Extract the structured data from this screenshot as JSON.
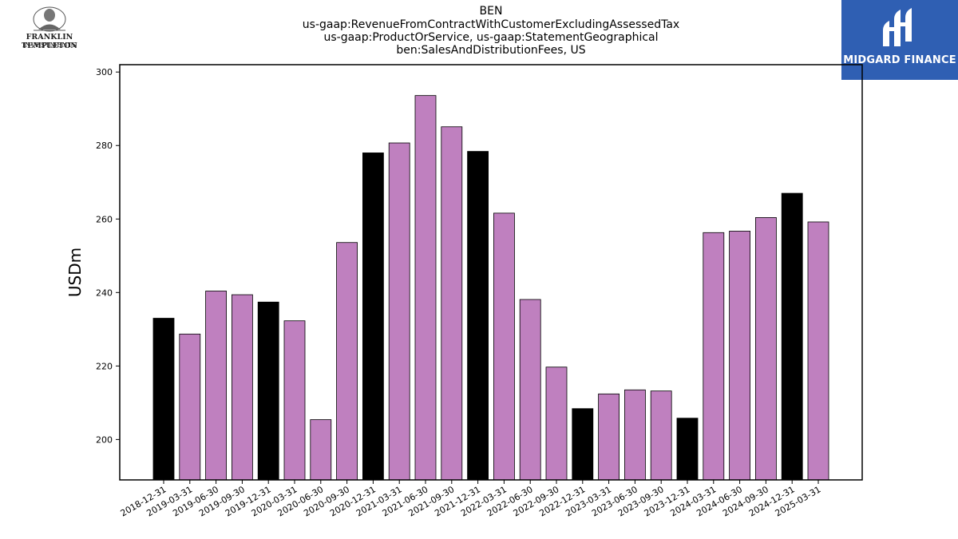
{
  "title_lines": [
    "BEN",
    "us-gaap:RevenueFromContractWithCustomerExcludingAssessedTax",
    "us-gaap:ProductOrService, us-gaap:StatementGeographical",
    "ben:SalesAndDistributionFees, US"
  ],
  "logos": {
    "left": {
      "line1": "FRANKLIN TEMPLETON",
      "line2": "INVESTMENTS"
    },
    "right": {
      "name": "MIDGARD FINANCE",
      "background": "#2f5fb3"
    }
  },
  "colors": {
    "bar_fy": "#000000",
    "bar_quarter": "#bf80bf",
    "bar_edge": "#000000"
  },
  "chart_data": {
    "type": "bar",
    "ylabel": "USDm",
    "ylim": [
      189,
      302
    ],
    "yticks": [
      200,
      220,
      240,
      260,
      280,
      300
    ],
    "categories": [
      "2018-12-31",
      "2019-03-31",
      "2019-06-30",
      "2019-09-30",
      "2019-12-31",
      "2020-03-31",
      "2020-06-30",
      "2020-09-30",
      "2020-12-31",
      "2021-03-31",
      "2021-06-30",
      "2021-09-30",
      "2021-12-31",
      "2022-03-31",
      "2022-06-30",
      "2022-09-30",
      "2022-12-31",
      "2023-03-31",
      "2023-06-30",
      "2023-09-30",
      "2023-12-31",
      "2024-03-31",
      "2024-06-30",
      "2024-09-30",
      "2024-12-31",
      "2025-03-31"
    ],
    "values": [
      233.0,
      228.7,
      240.4,
      239.4,
      237.4,
      232.3,
      205.4,
      253.6,
      278.0,
      280.7,
      293.6,
      285.1,
      278.4,
      261.6,
      238.1,
      219.7,
      208.4,
      212.4,
      213.5,
      213.2,
      205.8,
      256.3,
      256.7,
      260.4,
      267.0,
      259.2
    ],
    "highlight": [
      true,
      false,
      false,
      false,
      true,
      false,
      false,
      false,
      true,
      false,
      false,
      false,
      true,
      false,
      false,
      false,
      true,
      false,
      false,
      false,
      true,
      false,
      false,
      false,
      true,
      false
    ]
  }
}
